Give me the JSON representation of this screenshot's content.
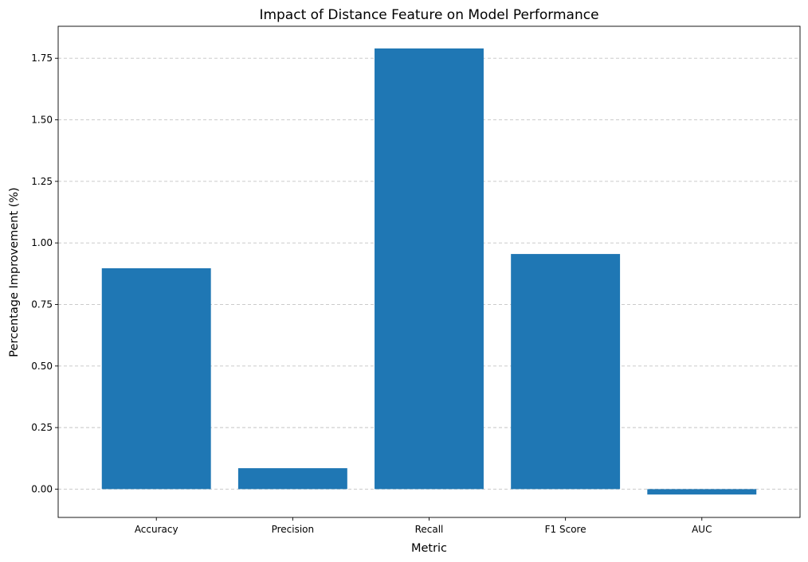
{
  "chart_data": {
    "type": "bar",
    "title": "Impact of Distance Feature on Model Performance",
    "xlabel": "Metric",
    "ylabel": "Percentage Improvement (%)",
    "categories": [
      "Accuracy",
      "Precision",
      "Recall",
      "F1 Score",
      "AUC"
    ],
    "values": [
      0.897,
      0.085,
      1.79,
      0.955,
      -0.022
    ],
    "ylim": [
      -0.115,
      1.88
    ],
    "yticks": [
      0.0,
      0.25,
      0.5,
      0.75,
      1.0,
      1.25,
      1.5,
      1.75
    ],
    "ytick_labels": [
      "0.00",
      "0.25",
      "0.50",
      "0.75",
      "1.00",
      "1.25",
      "1.50",
      "1.75"
    ],
    "grid": "y-dashed",
    "legend": "none",
    "bar_color": "#1f77b4"
  }
}
